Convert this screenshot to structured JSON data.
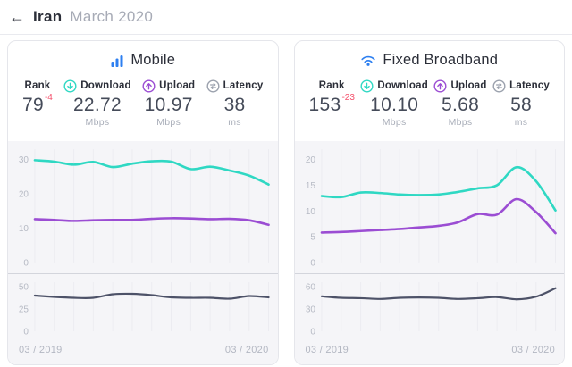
{
  "header": {
    "back_icon": "←",
    "title": "Iran",
    "subtitle": "March 2020"
  },
  "colors": {
    "teal": "#2fd8c3",
    "purple": "#9b4dd3",
    "dark": "#4d5268",
    "blue": "#2d7ff0",
    "red": "#f4516c",
    "grid": "#ececf1",
    "axis_text": "#b6bac4",
    "chart_bg": "#f5f5f8"
  },
  "cards": [
    {
      "title": "Mobile",
      "icon": "mobile-bars-icon",
      "stats": [
        {
          "label": "Rank",
          "value": "79",
          "delta": "-4",
          "unit": ""
        },
        {
          "label": "Download",
          "value": "22.72",
          "unit": "Mbps"
        },
        {
          "label": "Upload",
          "value": "10.97",
          "unit": "Mbps"
        },
        {
          "label": "Latency",
          "value": "38",
          "unit": "ms"
        }
      ],
      "x_start": "03 / 2019",
      "x_end": "03 / 2020"
    },
    {
      "title": "Fixed Broadband",
      "icon": "wifi-icon",
      "stats": [
        {
          "label": "Rank",
          "value": "153",
          "delta": "-23",
          "unit": ""
        },
        {
          "label": "Download",
          "value": "10.10",
          "unit": "Mbps"
        },
        {
          "label": "Upload",
          "value": "5.68",
          "unit": "Mbps"
        },
        {
          "label": "Latency",
          "value": "58",
          "unit": "ms"
        }
      ],
      "x_start": "03 / 2019",
      "x_end": "03 / 2020"
    }
  ],
  "chart_data": [
    {
      "type": "line",
      "title": "Mobile download/upload speed (Mbps), monthly",
      "x": [
        "2019-03",
        "2019-04",
        "2019-05",
        "2019-06",
        "2019-07",
        "2019-08",
        "2019-09",
        "2019-10",
        "2019-11",
        "2019-12",
        "2020-01",
        "2020-02",
        "2020-03"
      ],
      "ylim": [
        0,
        33
      ],
      "yticks": [
        30,
        20,
        10,
        0
      ],
      "grid": "vertical",
      "legend": "none",
      "series": [
        {
          "name": "Download",
          "color": "teal",
          "width": 2.6,
          "values": [
            29.8,
            29.4,
            28.5,
            29.3,
            27.8,
            28.8,
            29.5,
            29.4,
            27.2,
            27.9,
            26.8,
            25.3,
            22.72
          ]
        },
        {
          "name": "Upload",
          "color": "purple",
          "width": 2.6,
          "values": [
            12.6,
            12.4,
            12.1,
            12.3,
            12.4,
            12.4,
            12.7,
            12.9,
            12.8,
            12.6,
            12.7,
            12.3,
            10.97
          ]
        }
      ]
    },
    {
      "type": "line",
      "title": "Mobile latency (ms), monthly",
      "x": [
        "2019-03",
        "2019-04",
        "2019-05",
        "2019-06",
        "2019-07",
        "2019-08",
        "2019-09",
        "2019-10",
        "2019-11",
        "2019-12",
        "2020-01",
        "2020-02",
        "2020-03"
      ],
      "ylim": [
        0,
        55
      ],
      "yticks": [
        50,
        25,
        0
      ],
      "grid": "vertical",
      "legend": "none",
      "series": [
        {
          "name": "Latency",
          "color": "dark",
          "width": 2.2,
          "values": [
            40,
            38.5,
            37.5,
            37.5,
            41.5,
            42,
            40.5,
            38,
            37.5,
            37.5,
            36.5,
            39.5,
            38
          ]
        }
      ]
    },
    {
      "type": "line",
      "title": "Fixed broadband download/upload speed (Mbps), monthly",
      "x": [
        "2019-03",
        "2019-04",
        "2019-05",
        "2019-06",
        "2019-07",
        "2019-08",
        "2019-09",
        "2019-10",
        "2019-11",
        "2019-12",
        "2020-01",
        "2020-02",
        "2020-03"
      ],
      "ylim": [
        0,
        22
      ],
      "yticks": [
        20,
        15,
        10,
        5,
        0
      ],
      "grid": "vertical",
      "legend": "none",
      "series": [
        {
          "name": "Download",
          "color": "teal",
          "width": 2.6,
          "values": [
            12.9,
            12.7,
            13.6,
            13.5,
            13.2,
            13.1,
            13.2,
            13.7,
            14.4,
            15.0,
            18.5,
            15.8,
            10.1
          ]
        },
        {
          "name": "Upload",
          "color": "purple",
          "width": 2.6,
          "values": [
            5.8,
            5.9,
            6.1,
            6.3,
            6.5,
            6.8,
            7.1,
            7.8,
            9.4,
            9.3,
            12.3,
            9.8,
            5.68
          ]
        }
      ]
    },
    {
      "type": "line",
      "title": "Fixed broadband latency (ms), monthly",
      "x": [
        "2019-03",
        "2019-04",
        "2019-05",
        "2019-06",
        "2019-07",
        "2019-08",
        "2019-09",
        "2019-10",
        "2019-11",
        "2019-12",
        "2020-01",
        "2020-02",
        "2020-03"
      ],
      "ylim": [
        0,
        66
      ],
      "yticks": [
        60,
        30,
        0
      ],
      "grid": "vertical",
      "legend": "none",
      "series": [
        {
          "name": "Latency",
          "color": "dark",
          "width": 2.2,
          "values": [
            47,
            45,
            44.5,
            43.5,
            45,
            45.5,
            45,
            43.5,
            44.5,
            46,
            43,
            46.5,
            58
          ]
        }
      ]
    }
  ]
}
